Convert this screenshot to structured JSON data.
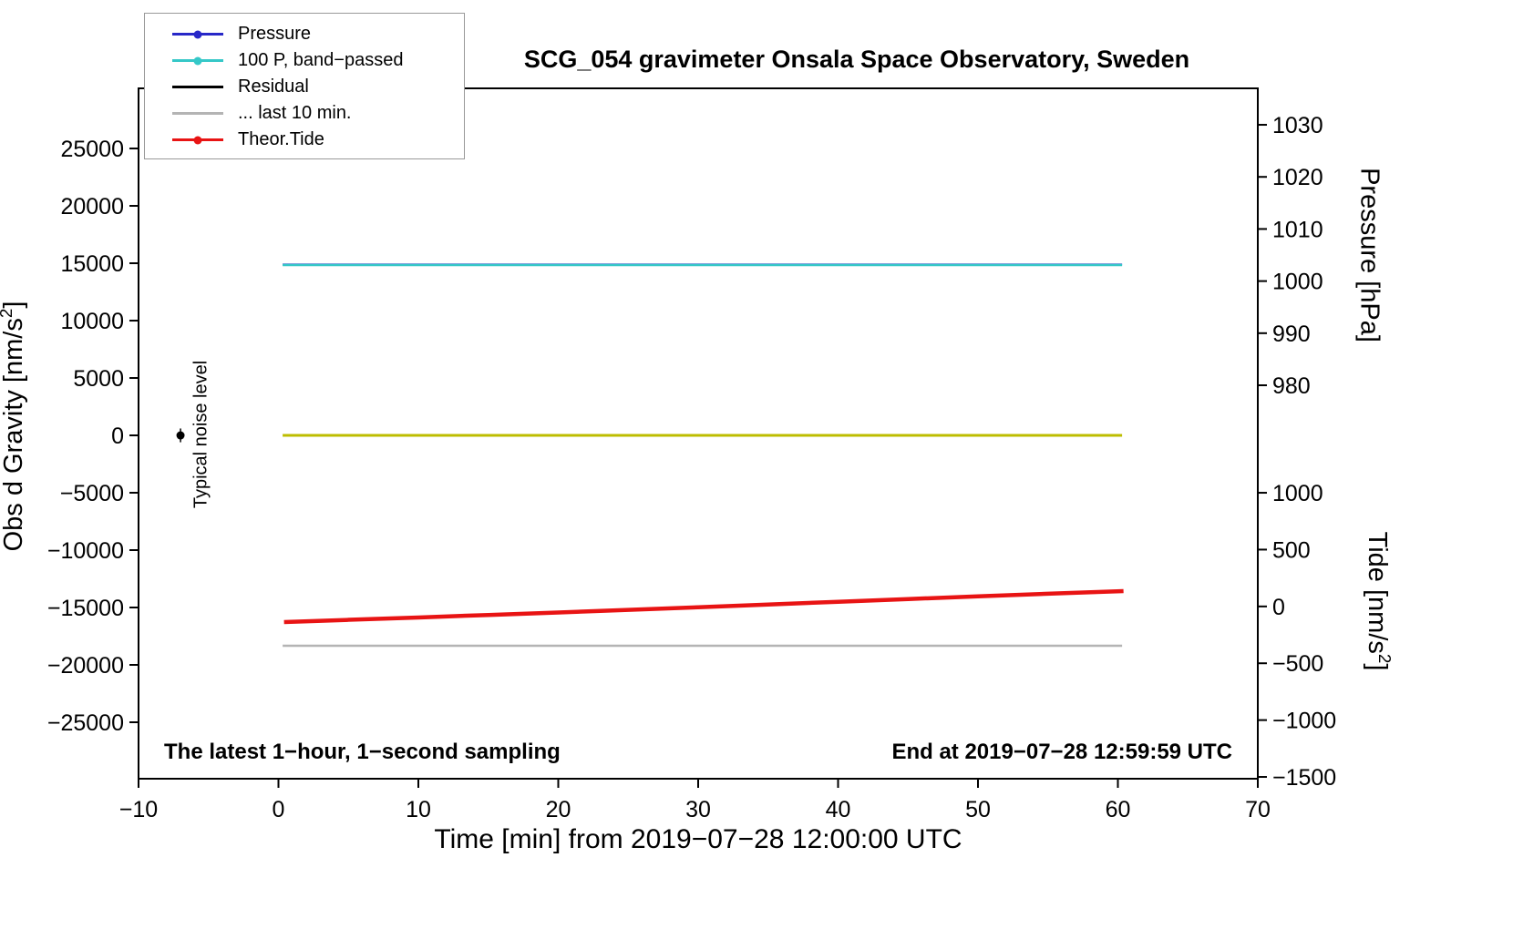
{
  "legend": {
    "position": "top-left",
    "items": [
      {
        "label": "Pressure",
        "color": "#2828c8",
        "marker": true
      },
      {
        "label": "100 P, band−passed",
        "color": "#35c8c8",
        "marker": true
      },
      {
        "label": "Residual",
        "color": "#000000",
        "marker": false
      },
      {
        "label": "... last 10 min.",
        "color": "#b4b4b4",
        "marker": false
      },
      {
        "label": "Theor.Tide",
        "color": "#e81414",
        "marker": true
      }
    ]
  },
  "annotations": {
    "sampling_note": "The latest 1−hour, 1−second sampling",
    "end_note": "End at 2019−07−28 12:59:59 UTC",
    "noise_label": "Typical noise level"
  },
  "chart_data": {
    "type": "line",
    "title": "SCG_054 gravimeter Onsala Space Observatory, Sweden",
    "grid": false,
    "legend_position": "top-left",
    "axes": {
      "x": {
        "label": "Time [min] from 2019−07−28 12:00:00 UTC",
        "range": [
          -10,
          70
        ],
        "ticks": [
          {
            "v": -10,
            "t": "−10"
          },
          {
            "v": 0,
            "t": "0"
          },
          {
            "v": 10,
            "t": "10"
          },
          {
            "v": 20,
            "t": "20"
          },
          {
            "v": 30,
            "t": "30"
          },
          {
            "v": 40,
            "t": "40"
          },
          {
            "v": 50,
            "t": "50"
          },
          {
            "v": 60,
            "t": "60"
          },
          {
            "v": 70,
            "t": "70"
          }
        ]
      },
      "y_gravity": {
        "label_pre": "Obs d Gravity [nm/s",
        "label_sup": "2",
        "label_post": "]",
        "range": [
          30240,
          -29920
        ],
        "frac": [
          0,
          1
        ],
        "ticks": [
          {
            "v": 25000,
            "t": "25000"
          },
          {
            "v": 20000,
            "t": "20000"
          },
          {
            "v": 15000,
            "t": "15000"
          },
          {
            "v": 10000,
            "t": "10000"
          },
          {
            "v": 5000,
            "t": "5000"
          },
          {
            "v": 0,
            "t": "0"
          },
          {
            "v": -5000,
            "t": "−5000"
          },
          {
            "v": -10000,
            "t": "−10000"
          },
          {
            "v": -15000,
            "t": "−15000"
          },
          {
            "v": -20000,
            "t": "−20000"
          },
          {
            "v": -25000,
            "t": "−25000"
          }
        ]
      },
      "y_pressure": {
        "label": "Pressure [hPa]",
        "range": [
          1030,
          980
        ],
        "frac": [
          0.0528,
          0.4301
        ],
        "ticks": [
          {
            "v": 1030,
            "t": "1030"
          },
          {
            "v": 1020,
            "t": "1020"
          },
          {
            "v": 1010,
            "t": "1010"
          },
          {
            "v": 1000,
            "t": "1000"
          },
          {
            "v": 990,
            "t": "990"
          },
          {
            "v": 980,
            "t": "980"
          }
        ]
      },
      "y_tide": {
        "label_pre": "Tide [nm/s",
        "label_sup": "2",
        "label_post": "]",
        "range": [
          1000,
          -1500
        ],
        "frac": [
          0.5858,
          0.9974
        ],
        "ticks": [
          {
            "v": 1000,
            "t": "1000"
          },
          {
            "v": 500,
            "t": "500"
          },
          {
            "v": 0,
            "t": "0"
          },
          {
            "v": -500,
            "t": "−500"
          },
          {
            "v": -1000,
            "t": "−1000"
          },
          {
            "v": -1500,
            "t": "−1500"
          }
        ]
      }
    },
    "series": [
      {
        "name": "Pressure",
        "axis": "y_pressure",
        "color": "#2828c8",
        "width": 2,
        "x": [
          0.3,
          60.3
        ],
        "y": [
          1003.2,
          1003.2
        ]
      },
      {
        "name": "100 P, band−passed",
        "axis": "y_gravity",
        "color": "#35c8c8",
        "width": 2.5,
        "x": [
          0.3,
          60.3
        ],
        "y": [
          14840,
          14840
        ]
      },
      {
        "name": "Residual",
        "axis": "y_gravity",
        "color": "#bdbd00",
        "width": 3,
        "x": [
          0.3,
          60.3
        ],
        "y": [
          0,
          0
        ]
      },
      {
        "name": "... last 10 min.",
        "axis": "y_gravity",
        "color": "#b4b4b4",
        "width": 2.5,
        "x": [
          0.3,
          60.3
        ],
        "y": [
          -18330,
          -18330
        ]
      },
      {
        "name": "Theor.Tide",
        "axis": "y_tide",
        "color": "#e81414",
        "width": 4.5,
        "x": [
          0.4,
          5,
          10,
          15,
          20,
          25,
          30,
          35,
          40,
          45,
          50,
          55,
          60.4
        ],
        "y": [
          -138,
          -118,
          -97,
          -75,
          -53,
          -30,
          -7,
          17,
          41,
          65,
          89,
          112,
          135
        ]
      }
    ],
    "noise_point": {
      "x": -7,
      "gravity": 0,
      "err": 600
    }
  }
}
